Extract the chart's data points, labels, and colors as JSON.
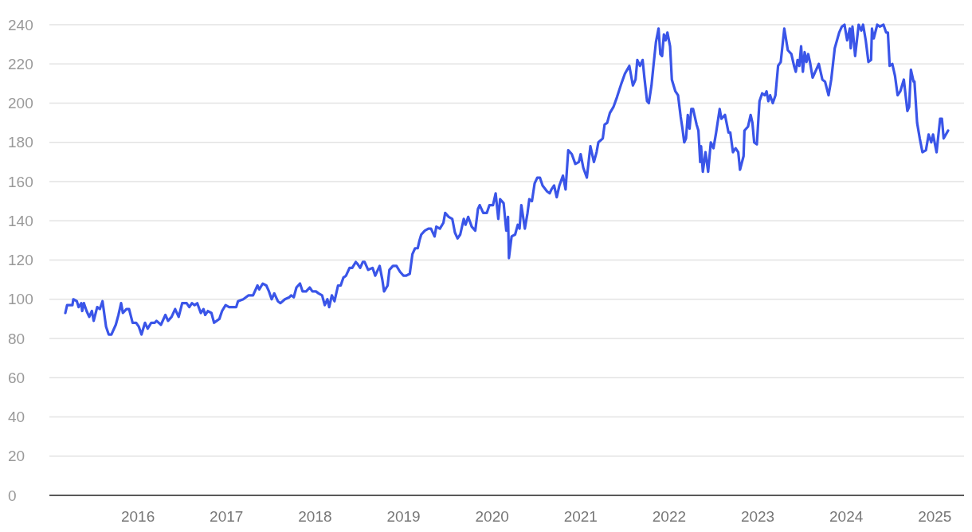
{
  "chart_data": {
    "type": "line",
    "xlim": [
      2015,
      2025.33
    ],
    "xticks": [
      2016,
      2017,
      2018,
      2019,
      2020,
      2021,
      2022,
      2023,
      2024,
      2025
    ],
    "ylim": [
      0,
      240
    ],
    "yticks": [
      0,
      20,
      40,
      60,
      80,
      100,
      120,
      140,
      160,
      180,
      200,
      220,
      240
    ],
    "grid": "y",
    "series": [
      {
        "color": "#3a55e8",
        "x": [
          2015.18,
          2015.2,
          2015.26,
          2015.27,
          2015.31,
          2015.33,
          2015.36,
          2015.37,
          2015.39,
          2015.42,
          2015.45,
          2015.48,
          2015.5,
          2015.54,
          2015.57,
          2015.6,
          2015.64,
          2015.67,
          2015.7,
          2015.75,
          2015.78,
          2015.81,
          2015.83,
          2015.87,
          2015.9,
          2015.94,
          2015.98,
          2016.01,
          2016.04,
          2016.08,
          2016.11,
          2016.15,
          2016.19,
          2016.21,
          2016.26,
          2016.31,
          2016.34,
          2016.38,
          2016.42,
          2016.46,
          2016.5,
          2016.55,
          2016.58,
          2016.61,
          2016.64,
          2016.67,
          2016.71,
          2016.74,
          2016.76,
          2016.79,
          2016.83,
          2016.86,
          2016.92,
          2016.95,
          2016.99,
          2017.03,
          2017.07,
          2017.11,
          2017.13,
          2017.19,
          2017.25,
          2017.3,
          2017.35,
          2017.37,
          2017.41,
          2017.45,
          2017.48,
          2017.51,
          2017.54,
          2017.58,
          2017.61,
          2017.66,
          2017.71,
          2017.73,
          2017.76,
          2017.79,
          2017.83,
          2017.86,
          2017.9,
          2017.94,
          2017.97,
          2018.01,
          2018.04,
          2018.08,
          2018.11,
          2018.14,
          2018.16,
          2018.19,
          2018.22,
          2018.26,
          2018.29,
          2018.32,
          2018.35,
          2018.39,
          2018.42,
          2018.46,
          2018.48,
          2018.51,
          2018.54,
          2018.56,
          2018.6,
          2018.65,
          2018.68,
          2018.73,
          2018.76,
          2018.78,
          2018.82,
          2018.84,
          2018.88,
          2018.92,
          2018.96,
          2019.0,
          2019.03,
          2019.07,
          2019.1,
          2019.13,
          2019.16,
          2019.18,
          2019.2,
          2019.24,
          2019.28,
          2019.31,
          2019.35,
          2019.37,
          2019.41,
          2019.45,
          2019.47,
          2019.51,
          2019.55,
          2019.58,
          2019.61,
          2019.64,
          2019.68,
          2019.7,
          2019.73,
          2019.77,
          2019.81,
          2019.84,
          2019.86,
          2019.9,
          2019.94,
          2019.97,
          2020.01,
          2020.04,
          2020.07,
          2020.09,
          2020.13,
          2020.16,
          2020.18,
          2020.19,
          2020.22,
          2020.26,
          2020.29,
          2020.31,
          2020.33,
          2020.37,
          2020.4,
          2020.42,
          2020.45,
          2020.48,
          2020.51,
          2020.54,
          2020.57,
          2020.62,
          2020.65,
          2020.67,
          2020.7,
          2020.73,
          2020.76,
          2020.8,
          2020.83,
          2020.86,
          2020.9,
          2020.94,
          2020.98,
          2021.0,
          2021.03,
          2021.07,
          2021.11,
          2021.15,
          2021.18,
          2021.2,
          2021.25,
          2021.27,
          2021.3,
          2021.33,
          2021.37,
          2021.41,
          2021.46,
          2021.5,
          2021.55,
          2021.59,
          2021.62,
          2021.64,
          2021.67,
          2021.7,
          2021.72,
          2021.75,
          2021.77,
          2021.8,
          2021.82,
          2021.85,
          2021.88,
          2021.9,
          2021.92,
          2021.94,
          2021.96,
          2021.98,
          2022.01,
          2022.03,
          2022.07,
          2022.1,
          2022.13,
          2022.15,
          2022.17,
          2022.19,
          2022.21,
          2022.23,
          2022.25,
          2022.27,
          2022.31,
          2022.33,
          2022.35,
          2022.36,
          2022.38,
          2022.41,
          2022.44,
          2022.47,
          2022.5,
          2022.53,
          2022.57,
          2022.59,
          2022.63,
          2022.67,
          2022.69,
          2022.72,
          2022.75,
          2022.78,
          2022.8,
          2022.84,
          2022.85,
          2022.89,
          2022.92,
          2022.94,
          2022.96,
          2022.99,
          2023.02,
          2023.05,
          2023.08,
          2023.1,
          2023.12,
          2023.14,
          2023.17,
          2023.2,
          2023.23,
          2023.26,
          2023.3,
          2023.34,
          2023.38,
          2023.41,
          2023.43,
          2023.45,
          2023.47,
          2023.49,
          2023.51,
          2023.53,
          2023.55,
          2023.57,
          2023.59,
          2023.62,
          2023.65,
          2023.69,
          2023.73,
          2023.76,
          2023.8,
          2023.83,
          2023.87,
          2023.92,
          2023.95,
          2023.98,
          2024.01,
          2024.04,
          2024.05,
          2024.07,
          2024.1,
          2024.14,
          2024.17,
          2024.19,
          2024.22,
          2024.25,
          2024.28,
          2024.29,
          2024.31,
          2024.35,
          2024.38,
          2024.42,
          2024.45,
          2024.47,
          2024.49,
          2024.52,
          2024.55,
          2024.58,
          2024.61,
          2024.65,
          2024.67,
          2024.69,
          2024.71,
          2024.73,
          2024.76,
          2024.77,
          2024.8,
          2024.83,
          2024.86,
          2024.9,
          2024.93,
          2024.96,
          2024.98,
          2025.02,
          2025.06,
          2025.08,
          2025.1,
          2025.15
        ],
        "values": [
          93,
          97,
          97,
          100,
          99,
          96,
          98,
          94,
          98,
          94,
          91,
          94,
          89,
          96,
          95,
          99,
          86,
          82,
          82,
          87,
          92,
          98,
          93,
          95,
          95,
          88,
          88,
          86,
          82,
          88,
          85,
          88,
          88,
          89,
          87,
          92,
          89,
          91,
          95,
          91,
          98,
          98,
          96,
          98,
          97,
          98,
          93,
          95,
          92,
          94,
          93,
          88,
          90,
          94,
          97,
          96,
          96,
          96,
          99,
          100,
          102,
          102,
          107,
          105,
          108,
          107,
          104,
          100,
          103,
          99,
          98,
          100,
          101,
          102,
          101,
          106,
          108,
          104,
          104,
          106,
          104,
          104,
          103,
          102,
          97,
          100,
          96,
          102,
          99,
          107,
          107,
          111,
          112,
          116,
          116,
          119,
          118,
          116,
          119,
          119,
          115,
          116,
          112,
          117,
          110,
          104,
          107,
          115,
          117,
          117,
          114,
          112,
          112,
          113,
          123,
          126,
          126,
          130,
          133,
          135,
          136,
          136,
          132,
          137,
          136,
          139,
          144,
          142,
          141,
          134,
          131,
          133,
          141,
          138,
          142,
          137,
          135,
          146,
          148,
          144,
          144,
          148,
          148,
          154,
          141,
          151,
          149,
          135,
          142,
          121,
          132,
          133,
          138,
          136,
          148,
          136,
          144,
          151,
          150,
          159,
          162,
          162,
          158,
          155,
          154,
          156,
          158,
          152,
          158,
          163,
          156,
          176,
          174,
          169,
          170,
          174,
          167,
          162,
          178,
          170,
          175,
          180,
          182,
          189,
          190,
          195,
          198,
          203,
          210,
          215,
          219,
          209,
          212,
          222,
          219,
          222,
          213,
          201,
          200,
          209,
          218,
          231,
          238,
          225,
          224,
          235,
          232,
          236,
          229,
          212,
          206,
          204,
          193,
          187,
          180,
          182,
          194,
          187,
          197,
          197,
          189,
          186,
          170,
          178,
          165,
          175,
          165,
          180,
          177,
          185,
          197,
          192,
          194,
          185,
          185,
          175,
          177,
          175,
          166,
          173,
          186,
          188,
          194,
          190,
          180,
          179,
          201,
          205,
          204,
          206,
          201,
          204,
          200,
          204,
          219,
          221,
          238,
          227,
          225,
          219,
          216,
          222,
          219,
          229,
          216,
          226,
          221,
          225,
          221,
          213,
          216,
          220,
          212,
          211,
          204,
          212,
          228,
          236,
          239,
          240,
          232,
          238,
          228,
          239,
          224,
          240,
          237,
          240,
          232,
          221,
          222,
          238,
          233,
          240,
          239,
          240,
          236,
          236,
          219,
          220,
          214,
          204,
          206,
          212,
          204,
          196,
          198,
          217,
          211,
          211,
          190,
          182,
          175,
          176,
          184,
          180,
          184,
          175,
          192,
          192,
          182,
          186
        ]
      }
    ]
  }
}
